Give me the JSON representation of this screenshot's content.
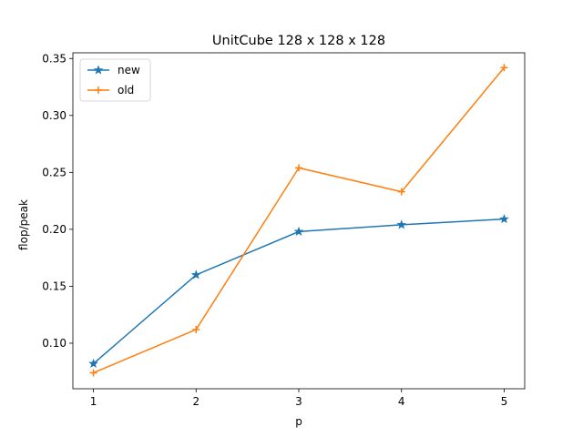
{
  "chart_data": {
    "type": "line",
    "title": "UnitCube 128 x 128 x 128",
    "xlabel": "p",
    "ylabel": "flop/peak",
    "x": [
      1,
      2,
      3,
      4,
      5
    ],
    "xlim": [
      0.8,
      5.2
    ],
    "ylim": [
      0.06,
      0.355
    ],
    "xticks": [
      1,
      2,
      3,
      4,
      5
    ],
    "yticks": [
      0.1,
      0.15,
      0.2,
      0.25,
      0.3,
      0.35
    ],
    "ytick_labels": [
      "0.10",
      "0.15",
      "0.20",
      "0.25",
      "0.30",
      "0.35"
    ],
    "grid": false,
    "legend_position": "top-left",
    "series": [
      {
        "name": "new",
        "values": [
          0.082,
          0.16,
          0.198,
          0.204,
          0.209
        ],
        "color": "#1f77b4",
        "marker": "star"
      },
      {
        "name": "old",
        "values": [
          0.074,
          0.112,
          0.254,
          0.233,
          0.342
        ],
        "color": "#ff7f0e",
        "marker": "plus"
      }
    ]
  }
}
